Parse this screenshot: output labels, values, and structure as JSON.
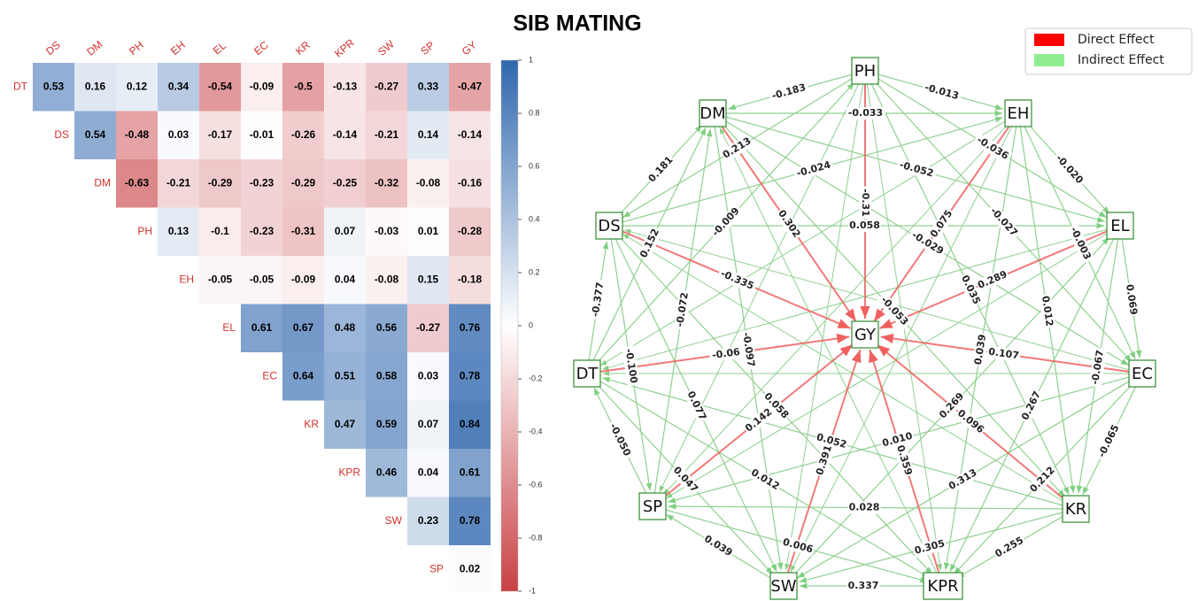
{
  "title": "SIB MATING",
  "chart_data": [
    {
      "type": "heatmap",
      "rows": [
        "DT",
        "DS",
        "DM",
        "PH",
        "EH",
        "EL",
        "EC",
        "KR",
        "KPR",
        "SW",
        "SP"
      ],
      "columns": [
        "DS",
        "DM",
        "PH",
        "EH",
        "EL",
        "EC",
        "KR",
        "KPR",
        "SW",
        "SP",
        "GY"
      ],
      "values": [
        [
          0.53,
          0.16,
          0.12,
          0.34,
          -0.54,
          -0.09,
          -0.5,
          -0.13,
          -0.27,
          0.33,
          -0.47
        ],
        [
          0.54,
          -0.48,
          0.03,
          -0.17,
          -0.01,
          -0.26,
          -0.14,
          -0.21,
          0.14,
          -0.14
        ],
        [
          -0.63,
          -0.21,
          -0.29,
          -0.23,
          -0.29,
          -0.25,
          -0.32,
          -0.08,
          -0.16
        ],
        [
          0.13,
          -0.1,
          -0.23,
          -0.31,
          0.07,
          -0.03,
          0.01,
          -0.28
        ],
        [
          -0.05,
          -0.05,
          -0.09,
          0.04,
          -0.08,
          0.15,
          -0.18
        ],
        [
          0.61,
          0.67,
          0.48,
          0.56,
          -0.27,
          0.76
        ],
        [
          0.64,
          0.51,
          0.58,
          0.03,
          0.78
        ],
        [
          0.47,
          0.59,
          0.07,
          0.84
        ],
        [
          0.46,
          0.04,
          0.61
        ],
        [
          0.23,
          0.78
        ],
        [
          0.02
        ]
      ],
      "clim": [
        -1,
        1
      ],
      "cticks": [
        1,
        0.8,
        0.6,
        0.4,
        0.2,
        0,
        -0.2,
        -0.4,
        -0.6,
        -0.8,
        -1
      ]
    },
    {
      "type": "network",
      "nodes": [
        "PH",
        "EH",
        "EL",
        "EC",
        "KR",
        "KPR",
        "SW",
        "SP",
        "DT",
        "DS",
        "DM",
        "GY"
      ],
      "target": "GY",
      "legend": [
        {
          "name": "Direct Effect",
          "color": "#ff0000"
        },
        {
          "name": "Indirect Effect",
          "color": "#90ee90"
        }
      ],
      "direct_effects": [
        {
          "source": "PH",
          "value": -0.31
        },
        {
          "source": "EH",
          "value": 0.075
        },
        {
          "source": "EL",
          "value": 0.289
        },
        {
          "source": "EC",
          "value": 0.107
        },
        {
          "source": "KR",
          "value": 0.096
        },
        {
          "source": "KPR",
          "value": 0.359
        },
        {
          "source": "SW",
          "value": 0.391
        },
        {
          "source": "SP",
          "value": 0.142
        },
        {
          "source": "DT",
          "value": -0.06
        },
        {
          "source": "DS",
          "value": -0.335
        },
        {
          "source": "DM",
          "value": 0.302
        }
      ],
      "indirect_effects": [
        {
          "source": "PH",
          "target": "DM",
          "value": -0.183
        },
        {
          "source": "PH",
          "target": "EH",
          "value": -0.013
        },
        {
          "source": "EH",
          "target": "EL",
          "value": -0.02,
          "label": "-0.020"
        },
        {
          "source": "EL",
          "target": "EC",
          "value": 0.069
        },
        {
          "source": "EC",
          "target": "KR",
          "value": -0.065
        },
        {
          "source": "KR",
          "target": "KPR",
          "value": 0.255
        },
        {
          "source": "KPR",
          "target": "SW",
          "value": 0.337
        },
        {
          "source": "SW",
          "target": "SP",
          "value": 0.039
        },
        {
          "source": "SP",
          "target": "DT",
          "value": -0.05,
          "label": "-0.050"
        },
        {
          "source": "DT",
          "target": "DS",
          "value": -0.377
        },
        {
          "source": "DS",
          "target": "DM",
          "value": 0.181
        },
        {
          "source": "DM",
          "target": "EH",
          "value": -0.033
        },
        {
          "source": "DS",
          "target": "EH",
          "value": -0.024
        },
        {
          "source": "DM",
          "target": "EL",
          "value": -0.052
        },
        {
          "source": "PH",
          "target": "EL",
          "value": -0.036
        },
        {
          "source": "PH",
          "target": "DS",
          "value": 0.213
        },
        {
          "source": "PH",
          "target": "EC",
          "value": -0.027
        },
        {
          "source": "EH",
          "target": "EC",
          "value": -0.003
        },
        {
          "source": "EL",
          "target": "KR",
          "value": -0.067
        },
        {
          "source": "EH",
          "target": "KR",
          "value": 0.012
        },
        {
          "source": "PH",
          "target": "KR",
          "value": 0.035
        },
        {
          "source": "EH",
          "target": "KPR",
          "value": 0.039
        },
        {
          "source": "DM",
          "target": "EC",
          "value": -0.029
        },
        {
          "source": "DM",
          "target": "KR",
          "value": -0.053
        },
        {
          "source": "DS",
          "target": "EL",
          "value": 0.058
        },
        {
          "source": "DT",
          "target": "PH",
          "value": -0.009
        },
        {
          "source": "DT",
          "target": "DM",
          "value": 0.152
        },
        {
          "source": "SP",
          "target": "DM",
          "value": -0.072
        },
        {
          "source": "DS",
          "target": "SP",
          "value": -0.1,
          "label": "-0.100"
        },
        {
          "source": "DM",
          "target": "SW",
          "value": -0.097
        },
        {
          "source": "DS",
          "target": "SW",
          "value": 0.077
        },
        {
          "source": "DS",
          "target": "KPR",
          "value": 0.058
        },
        {
          "source": "DT",
          "target": "KPR",
          "value": 0.012
        },
        {
          "source": "DT",
          "target": "SW",
          "value": 0.047
        },
        {
          "source": "SP",
          "target": "KPR",
          "value": 0.006
        },
        {
          "source": "KR",
          "target": "SW",
          "value": 0.305
        },
        {
          "source": "SW",
          "target": "EL",
          "value": 0.269
        },
        {
          "source": "EC",
          "target": "KPR",
          "value": 0.212
        },
        {
          "source": "EL",
          "target": "KPR",
          "value": 0.267
        },
        {
          "source": "EC",
          "target": "SW",
          "value": 0.313
        },
        {
          "source": "EC",
          "target": "SP",
          "value": 0.01,
          "label": "0.010"
        },
        {
          "source": "KR",
          "target": "SP",
          "value": 0.028
        },
        {
          "source": "KR",
          "target": "DT",
          "value": 0.052
        }
      ]
    }
  ]
}
